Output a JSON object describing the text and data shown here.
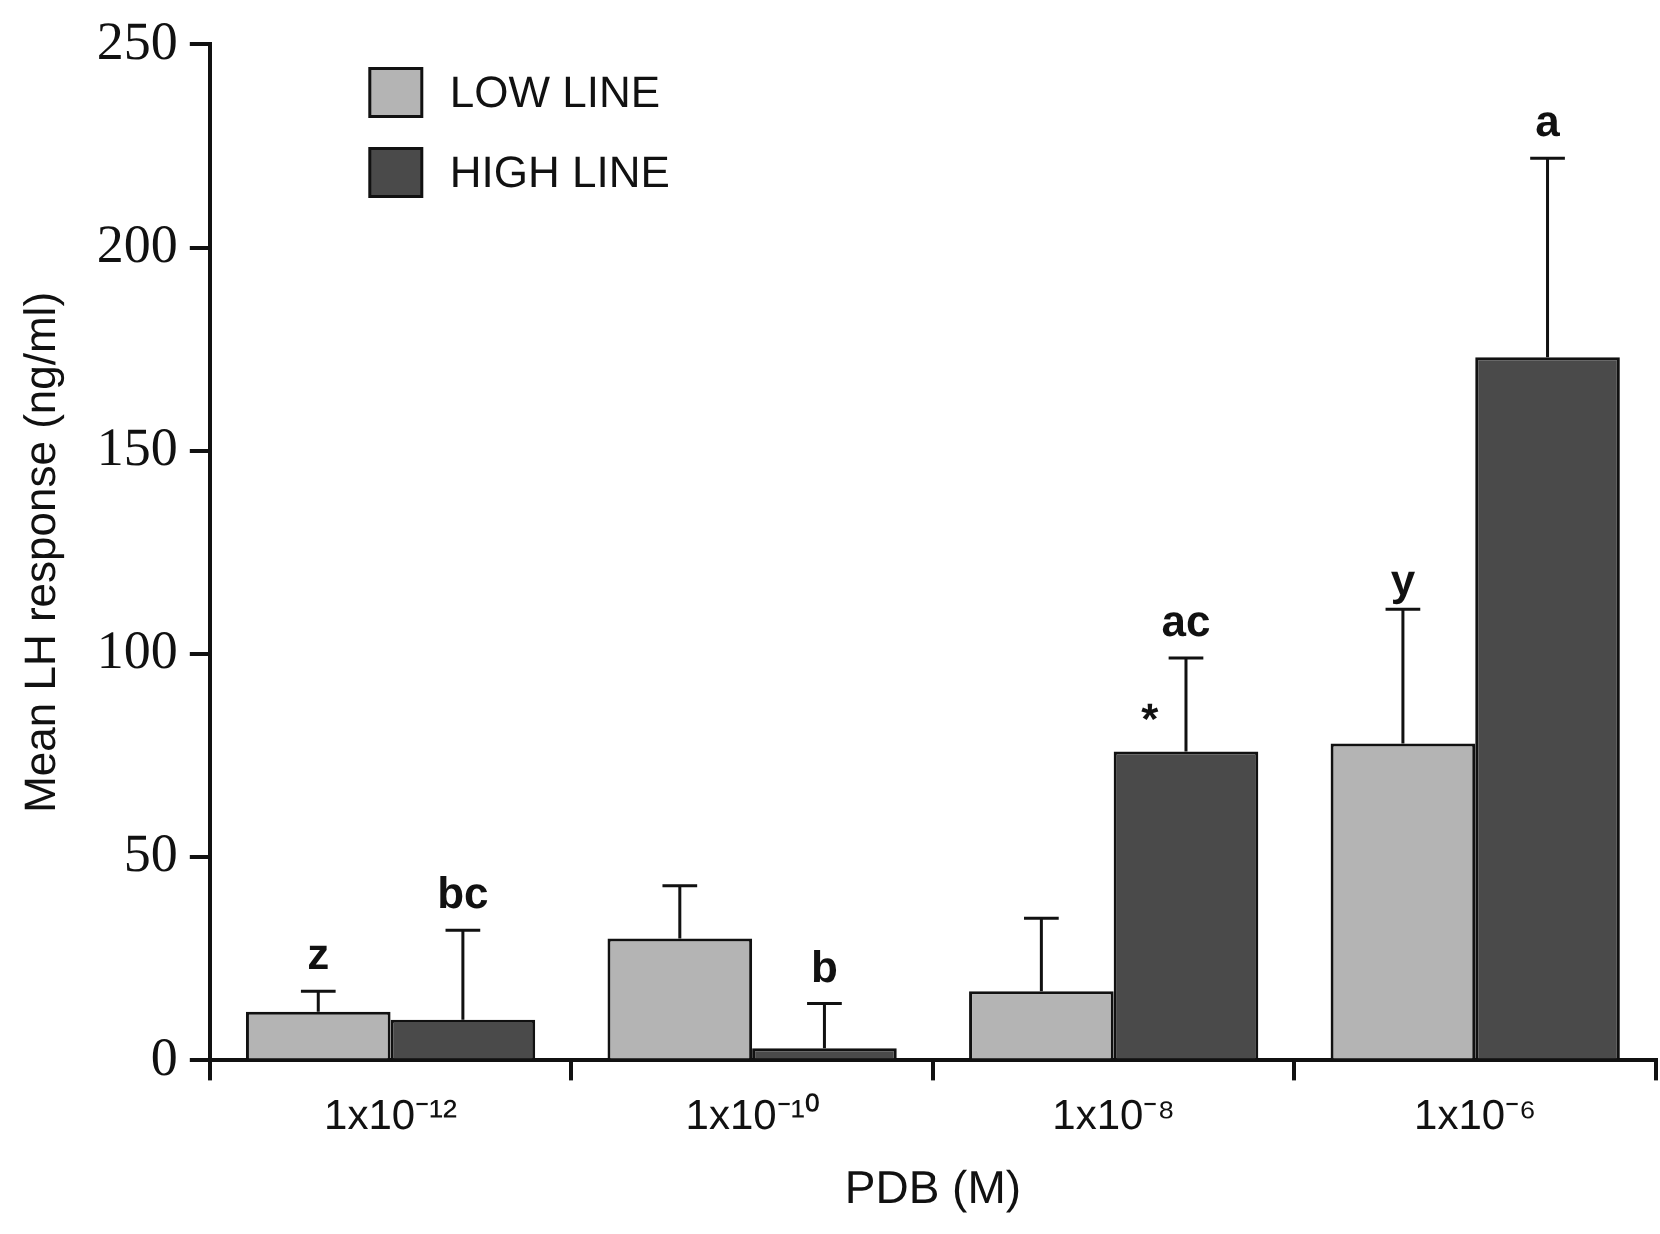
{
  "chart_data": {
    "type": "bar",
    "xlabel": "PDB (M)",
    "ylabel": "Mean LH response (ng/ml)",
    "categories": [
      "1x10⁻¹²",
      "1x10⁻¹⁰",
      "1x10⁻⁸",
      "1x10⁻⁶"
    ],
    "series": [
      {
        "name": "LOW LINE",
        "color": "#b4b4b4",
        "values": [
          12,
          30,
          17,
          78
        ],
        "errors": [
          [
            12,
            17
          ],
          [
            30,
            43
          ],
          [
            17,
            35
          ],
          [
            78,
            111
          ]
        ]
      },
      {
        "name": "HIGH LINE",
        "color": "#4a4a4a",
        "values": [
          10,
          3,
          76,
          173
        ],
        "errors": [
          [
            10,
            32
          ],
          [
            3,
            14
          ],
          [
            76,
            99
          ],
          [
            173,
            222
          ]
        ]
      }
    ],
    "ylim": [
      0,
      250
    ],
    "yticks": [
      0,
      50,
      100,
      150,
      200,
      250
    ],
    "grid": false,
    "legend": "top left",
    "annotations": [
      {
        "text": "z",
        "x": "1x10⁻¹²",
        "y": 12
      },
      {
        "text": "bc",
        "x": "1x10⁻¹²",
        "y": 10
      },
      {
        "text": "b",
        "x": "1x10⁻¹⁰",
        "y": 3
      },
      {
        "text": "*",
        "x": "1x10⁻⁸",
        "y": 76
      },
      {
        "text": "ac",
        "x": "1x10⁻⁸",
        "y": 76
      },
      {
        "text": "y",
        "x": "1x10⁻⁶",
        "y": 111
      },
      "a"
    ]
  }
}
